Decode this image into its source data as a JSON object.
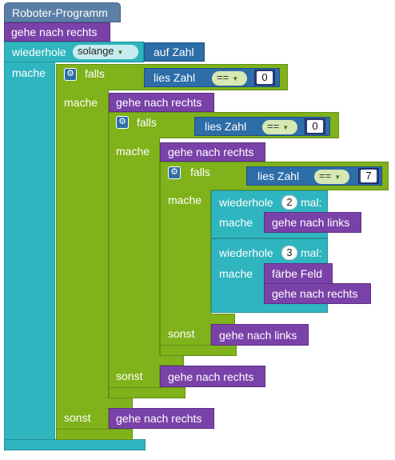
{
  "program": {
    "title": "Roboter-Programm",
    "first_move": "gehe nach rechts",
    "while_keyword": "wiederhole",
    "while_mode": "solange",
    "while_condition": "auf Zahl",
    "do_keyword": "mache"
  },
  "if1": {
    "keyword": "falls",
    "read": "lies Zahl",
    "op": "==",
    "value": "0",
    "do_keyword": "mache",
    "then_move": "gehe nach rechts",
    "else_keyword": "sonst",
    "else_move": "gehe nach rechts"
  },
  "if2": {
    "keyword": "falls",
    "read": "lies Zahl",
    "op": "==",
    "value": "0",
    "do_keyword": "mache",
    "then_move": "gehe nach rechts",
    "else_keyword": "sonst",
    "else_move": "gehe nach rechts"
  },
  "if3": {
    "keyword": "falls",
    "read": "lies Zahl",
    "op": "==",
    "value": "7",
    "do_keyword": "mache",
    "else_keyword": "sonst",
    "else_move": "gehe nach links"
  },
  "repeat1": {
    "keyword": "wiederhole",
    "count": "2",
    "suffix": "mal:",
    "do_keyword": "mache",
    "move": "gehe nach links"
  },
  "repeat2": {
    "keyword": "wiederhole",
    "count": "3",
    "suffix": "mal:",
    "do_keyword": "mache",
    "paint": "färbe Feld",
    "move": "gehe nach rechts"
  }
}
